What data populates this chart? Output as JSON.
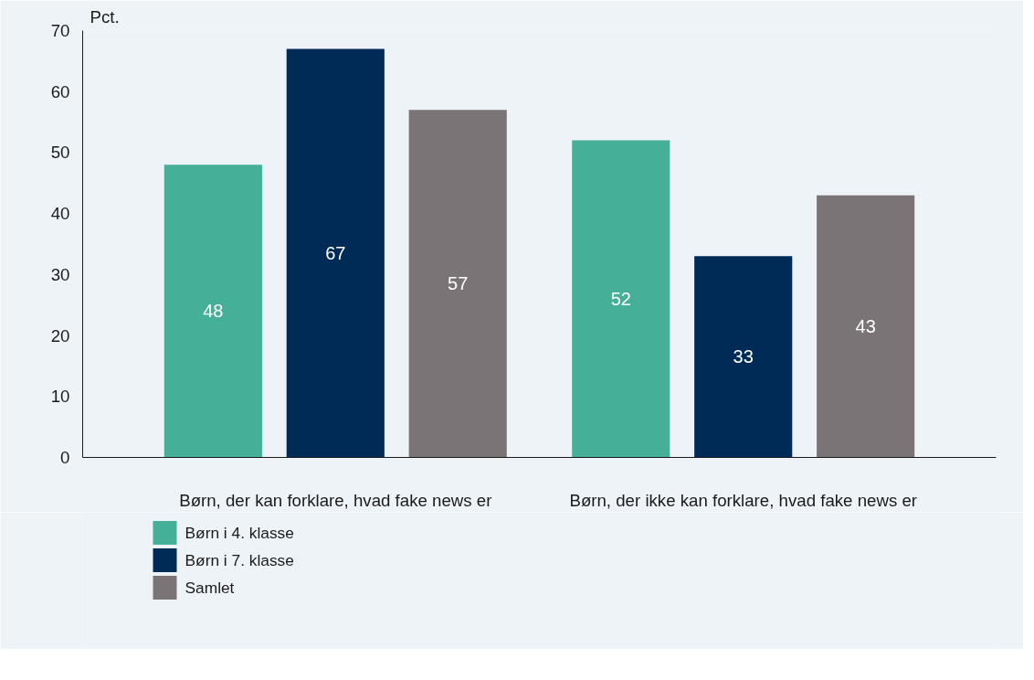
{
  "chart_data": {
    "type": "bar",
    "ylabel": "Pct.",
    "categories": [
      "Børn, der kan forklare, hvad fake news er",
      "Børn, der ikke kan forklare, hvad fake news er"
    ],
    "series": [
      {
        "name": "Børn i 4. klasse",
        "color": "#45b097",
        "values": [
          48,
          52
        ]
      },
      {
        "name": "Børn i 7. klasse",
        "color": "#002b56",
        "values": [
          67,
          33
        ]
      },
      {
        "name": "Samlet",
        "color": "#7a7477",
        "values": [
          57,
          43
        ]
      }
    ],
    "ylim": [
      0,
      70
    ],
    "yticks": [
      0,
      10,
      20,
      30,
      40,
      50,
      60,
      70
    ],
    "grid": false,
    "legend": "bottom left",
    "data_labels": true
  }
}
